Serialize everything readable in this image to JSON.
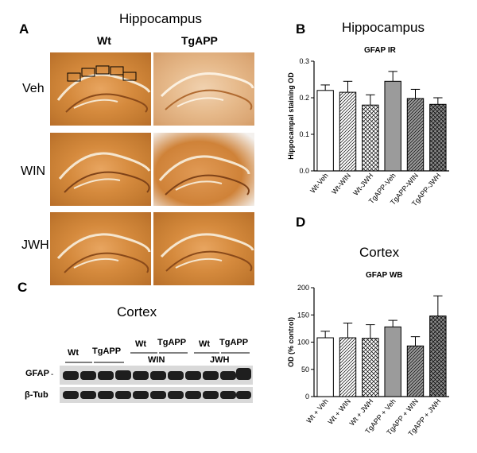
{
  "panel_letters": {
    "a": "A",
    "b": "B",
    "c": "C",
    "d": "D"
  },
  "panel_a": {
    "title": "Hippocampus",
    "col_wt": "Wt",
    "col_tg": "TgAPP",
    "rows": [
      "Veh",
      "WIN",
      "JWH"
    ]
  },
  "panel_c": {
    "title": "Cortex",
    "wt_label_1": "Wt",
    "tg_label_1": "TgAPP",
    "wt_label_2": "Wt",
    "tg_label_2": "TgAPP",
    "wt_label_3": "Wt",
    "tg_label_3": "TgAPP",
    "win_label": "WIN",
    "jwh_label": "JWH",
    "gfap_label": "GFAP",
    "tub_label": "β-Tub"
  },
  "chart_data": [
    {
      "type": "bar",
      "panel": "B",
      "title": "Hippocampus",
      "subtitle": "GFAP IR",
      "ylabel": "Hippocampal staining OD",
      "xlabel": "",
      "ylim": [
        0,
        0.3
      ],
      "yticks": [
        "0.0",
        "0.1",
        "0.2",
        "0.3"
      ],
      "categories": [
        "Wt-Veh",
        "Wt-WIN",
        "Wt-JWH",
        "TgAPP-Veh",
        "TgAPP-WIN",
        "TgAPP-JWH"
      ],
      "values": [
        0.22,
        0.215,
        0.18,
        0.245,
        0.198,
        0.182
      ],
      "errors": [
        0.015,
        0.03,
        0.028,
        0.027,
        0.025,
        0.018
      ],
      "fills": [
        "white",
        "hatch",
        "cross",
        "gray",
        "hatch-gray",
        "cross-gray"
      ]
    },
    {
      "type": "bar",
      "panel": "D",
      "title": "Cortex",
      "subtitle": "GFAP WB",
      "ylabel": "OD (% control)",
      "xlabel": "",
      "ylim": [
        0,
        200
      ],
      "yticks": [
        "0",
        "50",
        "100",
        "150",
        "200"
      ],
      "categories": [
        "Wt + Veh",
        "Wt + WIN",
        "Wt + JWH",
        "TgAPP + Veh",
        "TgAPP + WIN",
        "TgAPP + JWH"
      ],
      "values": [
        108,
        108,
        107,
        128,
        93,
        148
      ],
      "errors": [
        12,
        27,
        25,
        12,
        17,
        37
      ],
      "fills": [
        "white",
        "hatch",
        "cross",
        "gray",
        "hatch-gray",
        "cross-gray"
      ]
    }
  ]
}
